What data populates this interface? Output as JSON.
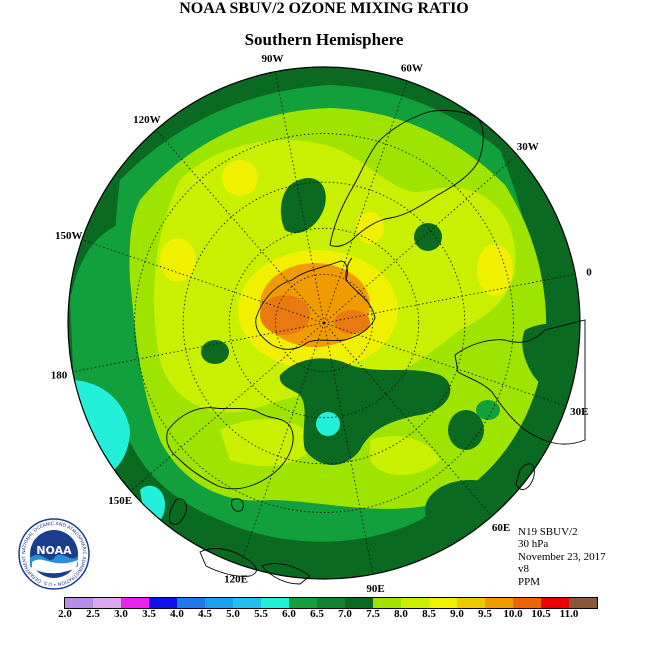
{
  "title": "NOAA SBUV/2 OZONE MIXING RATIO",
  "subtitle": "Southern Hemisphere",
  "info_lines": [
    "N19 SBUV/2",
    "30 hPa",
    "November 23, 2017",
    "v8",
    "PPM"
  ],
  "logo_text": "NOAA",
  "logo_ring_text": "NATIONAL OCEANIC AND ATMOSPHERIC ADMINISTRATION • U.S. DEPARTMENT OF COMMERCE",
  "longitude_labels": [
    "0",
    "30E",
    "60E",
    "90E",
    "120E",
    "150E",
    "180",
    "150W",
    "120W",
    "90W",
    "60W",
    "30W"
  ],
  "colorbar": {
    "ticks": [
      "2.0",
      "2.5",
      "3.0",
      "3.5",
      "4.0",
      "4.5",
      "5.0",
      "5.5",
      "6.0",
      "6.5",
      "7.0",
      "7.5",
      "8.0",
      "8.5",
      "9.0",
      "9.5",
      "10.0",
      "10.5",
      "11.0"
    ],
    "colors": [
      "#b58ce8",
      "#d9a8f0",
      "#ee20ee",
      "#1010ee",
      "#1e78ee",
      "#1aa0ee",
      "#20bff0",
      "#22f0d8",
      "#12a03c",
      "#108232",
      "#0a6a22",
      "#9ee400",
      "#c8f000",
      "#f0f000",
      "#f0c800",
      "#f09c00",
      "#f06400",
      "#ee0000",
      "#8c5638"
    ]
  },
  "colors": {
    "background_low": "#108232",
    "ring_low": "#0a6a22",
    "mid": "#9ee400",
    "high": "#c8f000",
    "peak": "#f0f000",
    "core_orange": "#f09c00",
    "core_dark_orange": "#e87a10",
    "cyan": "#22f0d8",
    "medium_green": "#12a03c"
  }
}
